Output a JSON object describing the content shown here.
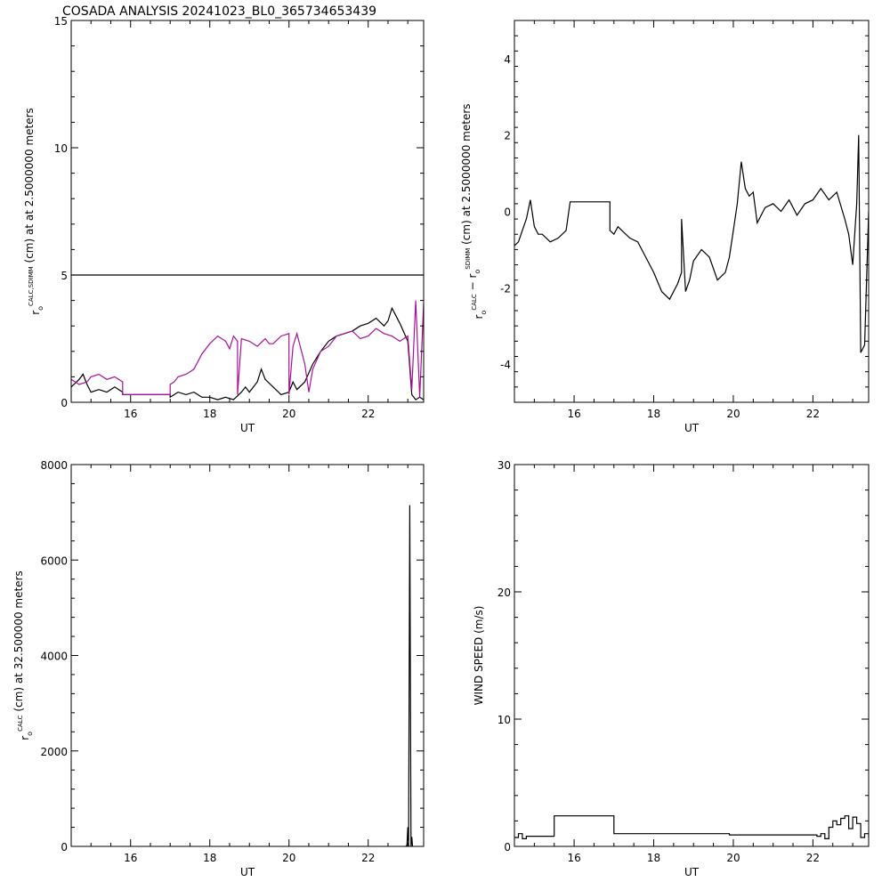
{
  "figure_title": "COSADA ANALYSIS 20241023_BL0_365734653439",
  "colors": {
    "black": "#000000",
    "magenta": "#aa1199",
    "background": "#ffffff"
  },
  "chart_data": [
    {
      "id": "panel-1",
      "type": "line",
      "xlabel": "UT",
      "ylabel_parts": [
        "r",
        "o",
        "CALC,SDIMM",
        " (cm) at  at 2.5000000 meters"
      ],
      "xlim": [
        14.5,
        23.4
      ],
      "ylim": [
        0,
        15
      ],
      "xticks": [
        16,
        18,
        20,
        22
      ],
      "yticks": [
        0,
        5,
        10,
        15
      ],
      "series": [
        {
          "color": "#000000",
          "style": "solid",
          "x": [
            14.5,
            23.4
          ],
          "y": [
            5,
            5
          ]
        },
        {
          "color": "#000000",
          "style": "solid",
          "x": [
            14.5,
            14.7,
            14.8,
            14.9,
            15.0,
            15.2,
            15.4,
            15.6,
            15.8,
            15.8,
            17.0,
            17.0,
            17.2,
            17.4,
            17.6,
            17.8,
            18.0,
            18.2,
            18.4,
            18.6,
            18.8,
            18.9,
            19.0,
            19.2,
            19.3,
            19.4,
            19.6,
            19.8,
            20.0,
            20.1,
            20.2,
            20.4,
            20.6,
            20.8,
            21.0,
            21.2,
            21.4,
            21.6,
            21.8,
            22.0,
            22.2,
            22.4,
            22.5,
            22.6,
            22.8,
            23.0,
            23.1,
            23.2,
            23.3,
            23.4
          ],
          "y": [
            0.6,
            0.9,
            1.1,
            0.7,
            0.4,
            0.5,
            0.4,
            0.6,
            0.4,
            0.3,
            0.3,
            0.2,
            0.4,
            0.3,
            0.4,
            0.2,
            0.2,
            0.1,
            0.2,
            0.1,
            0.4,
            0.6,
            0.4,
            0.8,
            1.3,
            0.9,
            0.6,
            0.3,
            0.4,
            0.8,
            0.5,
            0.8,
            1.5,
            2.0,
            2.4,
            2.6,
            2.7,
            2.8,
            3.0,
            3.1,
            3.3,
            3.0,
            3.2,
            3.7,
            3.1,
            2.4,
            0.3,
            0.1,
            0.2,
            0.1
          ]
        },
        {
          "color": "#aa1199",
          "style": "solid",
          "x": [
            14.5,
            14.7,
            14.9,
            15.0,
            15.2,
            15.4,
            15.6,
            15.8,
            15.8,
            17.0,
            17.0,
            17.1,
            17.2,
            17.4,
            17.5,
            17.6,
            17.8,
            18.0,
            18.2,
            18.4,
            18.5,
            18.6,
            18.7,
            18.7,
            18.8,
            19.0,
            19.2,
            19.4,
            19.5,
            19.6,
            19.8,
            20.0,
            20.0,
            20.1,
            20.2,
            20.4,
            20.5,
            20.6,
            20.8,
            21.0,
            21.1,
            21.2,
            21.4,
            21.6,
            21.8,
            22.0,
            22.2,
            22.4,
            22.6,
            22.8,
            23.0,
            23.1,
            23.2,
            23.3,
            23.4
          ],
          "y": [
            0.9,
            0.7,
            0.8,
            1.0,
            1.1,
            0.9,
            1.0,
            0.8,
            0.3,
            0.3,
            0.7,
            0.8,
            1.0,
            1.1,
            1.2,
            1.3,
            1.9,
            2.3,
            2.6,
            2.4,
            2.1,
            2.6,
            2.4,
            0.3,
            2.5,
            2.4,
            2.2,
            2.5,
            2.3,
            2.3,
            2.6,
            2.7,
            0.3,
            2.2,
            2.7,
            1.5,
            0.4,
            1.3,
            2.0,
            2.2,
            2.4,
            2.6,
            2.7,
            2.8,
            2.5,
            2.6,
            2.9,
            2.7,
            2.6,
            2.4,
            2.6,
            0.5,
            4.0,
            0.2,
            3.9
          ]
        }
      ]
    },
    {
      "id": "panel-2",
      "type": "line",
      "xlabel": "UT",
      "ylabel_parts": [
        "r",
        "o",
        "CALC",
        " − r",
        "o",
        "SDIMM",
        " (cm) at 2.5000000 meters"
      ],
      "xlim": [
        14.5,
        23.4
      ],
      "ylim": [
        -5,
        5
      ],
      "xticks": [
        16,
        18,
        20,
        22
      ],
      "yticks": [
        -4,
        -2,
        0,
        2,
        4
      ],
      "series": [
        {
          "color": "#000000",
          "style": "solid",
          "x": [
            14.5,
            14.6,
            14.7,
            14.8,
            14.9,
            15.0,
            15.1,
            15.2,
            15.4,
            15.6,
            15.8,
            15.9,
            16.2,
            16.5,
            16.9,
            16.9,
            17.0,
            17.1,
            17.2,
            17.4,
            17.6,
            17.8,
            18.0,
            18.2,
            18.4,
            18.6,
            18.7,
            18.7,
            18.8,
            18.9,
            19.0,
            19.2,
            19.4,
            19.6,
            19.8,
            19.9,
            20.0,
            20.1,
            20.2,
            20.3,
            20.4,
            20.5,
            20.6,
            20.8,
            21.0,
            21.2,
            21.4,
            21.6,
            21.8,
            22.0,
            22.2,
            22.4,
            22.6,
            22.8,
            22.9,
            23.0,
            23.1,
            23.15,
            23.2,
            23.3,
            23.4
          ],
          "y": [
            -0.9,
            -0.8,
            -0.5,
            -0.2,
            0.3,
            -0.4,
            -0.6,
            -0.6,
            -0.8,
            -0.7,
            -0.5,
            0.25,
            0.25,
            0.25,
            0.25,
            -0.5,
            -0.6,
            -0.4,
            -0.5,
            -0.7,
            -0.8,
            -1.2,
            -1.6,
            -2.1,
            -2.3,
            -1.9,
            -1.6,
            -0.2,
            -2.1,
            -1.8,
            -1.3,
            -1.0,
            -1.2,
            -1.8,
            -1.6,
            -1.2,
            -0.5,
            0.2,
            1.3,
            0.6,
            0.4,
            0.5,
            -0.3,
            0.1,
            0.2,
            0.0,
            0.3,
            -0.1,
            0.2,
            0.3,
            0.6,
            0.3,
            0.5,
            -0.2,
            -0.6,
            -1.4,
            0.2,
            2.0,
            -3.7,
            -3.5,
            0.0
          ]
        }
      ]
    },
    {
      "id": "panel-3",
      "type": "line",
      "xlabel": "UT",
      "ylabel_parts": [
        "r",
        "o",
        "CALC",
        " (cm) at 32.500000 meters"
      ],
      "xlim": [
        14.5,
        23.4
      ],
      "ylim": [
        0,
        8000
      ],
      "xticks": [
        16,
        18,
        20,
        22
      ],
      "yticks": [
        0,
        2000,
        4000,
        6000,
        8000
      ],
      "series": [
        {
          "color": "#000000",
          "style": "solid",
          "x": [
            22.95,
            22.98,
            23.0,
            23.02,
            23.05,
            23.08,
            23.1,
            23.12
          ],
          "y": [
            0,
            30,
            400,
            0,
            7150,
            0,
            200,
            0
          ]
        }
      ]
    },
    {
      "id": "panel-4",
      "type": "line",
      "xlabel": "UT",
      "ylabel_parts": [
        "WIND SPEED (m/s)"
      ],
      "xlim": [
        14.5,
        23.4
      ],
      "ylim": [
        0,
        30
      ],
      "xticks": [
        16,
        18,
        20,
        22
      ],
      "yticks": [
        0,
        10,
        20,
        30
      ],
      "series": [
        {
          "color": "#000000",
          "style": "step",
          "x": [
            14.5,
            14.6,
            14.7,
            14.8,
            15.5,
            17.0,
            19.9,
            22.1,
            22.2,
            22.3,
            22.4,
            22.5,
            22.6,
            22.7,
            22.8,
            22.9,
            23.0,
            23.1,
            23.2,
            23.3,
            23.4
          ],
          "y": [
            0.7,
            1.0,
            0.6,
            0.8,
            2.4,
            1.0,
            0.9,
            0.8,
            1.0,
            0.6,
            1.5,
            2.0,
            1.7,
            2.2,
            2.4,
            1.4,
            2.3,
            1.8,
            0.7,
            1.0,
            0.7
          ]
        }
      ]
    }
  ]
}
